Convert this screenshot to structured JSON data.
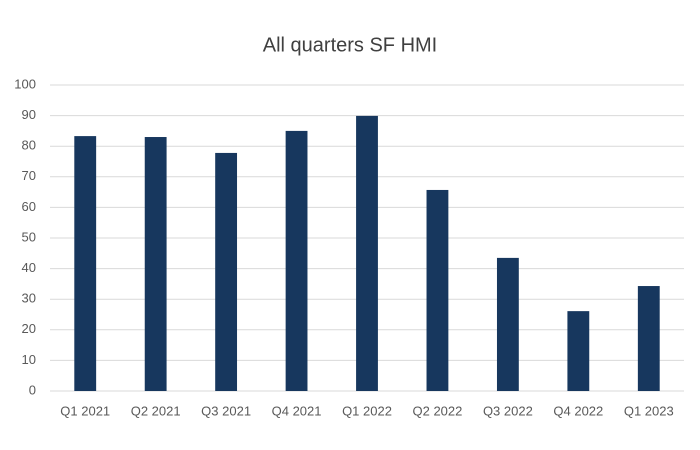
{
  "chart_data": {
    "type": "bar",
    "title": "All quarters SF HMI",
    "categories": [
      "Q1 2021",
      "Q2 2021",
      "Q3 2021",
      "Q4 2021",
      "Q1 2022",
      "Q2 2022",
      "Q3 2022",
      "Q4 2022",
      "Q1 2023"
    ],
    "values": [
      83.3,
      83,
      77.8,
      85,
      89.9,
      65.7,
      43.5,
      26.1,
      34.3
    ],
    "color": "#17375e",
    "ylim": [
      0,
      100
    ],
    "yticks": [
      0,
      10,
      20,
      30,
      40,
      50,
      60,
      70,
      80,
      90,
      100
    ],
    "grid": true
  }
}
